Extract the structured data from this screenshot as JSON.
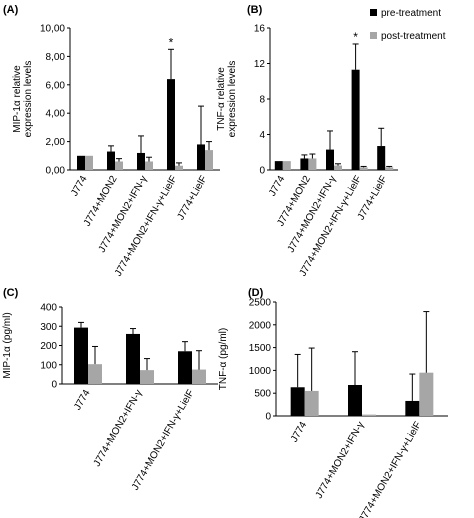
{
  "legend": {
    "pre": "pre-treatment",
    "post": "post-treatment"
  },
  "colors": {
    "pre": "#000000",
    "post": "#a6a6a6",
    "axis": "#000000"
  },
  "chart_data": [
    {
      "panel": "(A)",
      "type": "bar",
      "ylabel": "MIP-1α relative\nexpression levels",
      "ylim": [
        0,
        10
      ],
      "yticks": [
        "0,00",
        "2,00",
        "4,00",
        "6,00",
        "8,00",
        "10,00"
      ],
      "categories": [
        "J774",
        "J774+MON2",
        "J774+MON2+IFN-γ",
        "J774+MON2+IFN-γ+LielF",
        "J774+LielF"
      ],
      "series": [
        {
          "name": "pre-treatment",
          "values": [
            1.0,
            1.3,
            1.2,
            6.4,
            1.8
          ],
          "errors": [
            0.0,
            0.4,
            1.2,
            2.1,
            2.7
          ]
        },
        {
          "name": "post-treatment",
          "values": [
            1.0,
            0.6,
            0.6,
            0.3,
            1.4
          ],
          "errors": [
            0.0,
            0.2,
            0.3,
            0.2,
            0.6
          ]
        }
      ],
      "annotations": [
        {
          "category": 3,
          "series": 0,
          "text": "*"
        }
      ]
    },
    {
      "panel": "(B)",
      "type": "bar",
      "ylabel": "TNF-α relative\nexpression levels",
      "ylim": [
        0,
        16
      ],
      "yticks": [
        "0",
        "4",
        "8",
        "12",
        "16"
      ],
      "categories": [
        "J774",
        "J774+MON2",
        "J774+MON2+IFN-γ",
        "J774+MON2+IFN-γ+LielF",
        "J774+LielF"
      ],
      "series": [
        {
          "name": "pre-treatment",
          "values": [
            1.0,
            1.3,
            2.3,
            11.3,
            2.7
          ],
          "errors": [
            0.0,
            0.4,
            2.1,
            2.9,
            2.0
          ]
        },
        {
          "name": "post-treatment",
          "values": [
            1.0,
            1.3,
            0.5,
            0.3,
            0.3
          ],
          "errors": [
            0.0,
            0.5,
            0.2,
            0.1,
            0.1
          ]
        }
      ],
      "annotations": [
        {
          "category": 3,
          "series": 0,
          "text": "*"
        }
      ]
    },
    {
      "panel": "(C)",
      "type": "bar",
      "ylabel": "MIP-1α (pg/ml)",
      "ylim": [
        0,
        400
      ],
      "yticks": [
        "0",
        "100",
        "200",
        "300",
        "400"
      ],
      "categories": [
        "J774",
        "J774+MON2+IFN-γ",
        "J774+MON2+IFN-γ+LielF"
      ],
      "series": [
        {
          "name": "pre-treatment",
          "values": [
            293,
            260,
            170
          ],
          "errors": [
            27,
            28,
            50
          ]
        },
        {
          "name": "post-treatment",
          "values": [
            103,
            72,
            75
          ],
          "errors": [
            92,
            60,
            98
          ]
        }
      ],
      "annotations": []
    },
    {
      "panel": "(D)",
      "type": "bar",
      "ylabel": "TNF-α (pg/ml)",
      "ylim": [
        0,
        2500
      ],
      "yticks": [
        "0",
        "500",
        "1000",
        "1500",
        "2000",
        "2500"
      ],
      "categories": [
        "J774",
        "J774+MON2+IFN-γ",
        "J774+MON2+IFN-γ+LielF"
      ],
      "series": [
        {
          "name": "pre-treatment",
          "values": [
            630,
            680,
            330
          ],
          "errors": [
            720,
            730,
            590
          ]
        },
        {
          "name": "post-treatment",
          "values": [
            550,
            30,
            950
          ],
          "errors": [
            940,
            0,
            1340
          ]
        }
      ],
      "annotations": []
    }
  ]
}
